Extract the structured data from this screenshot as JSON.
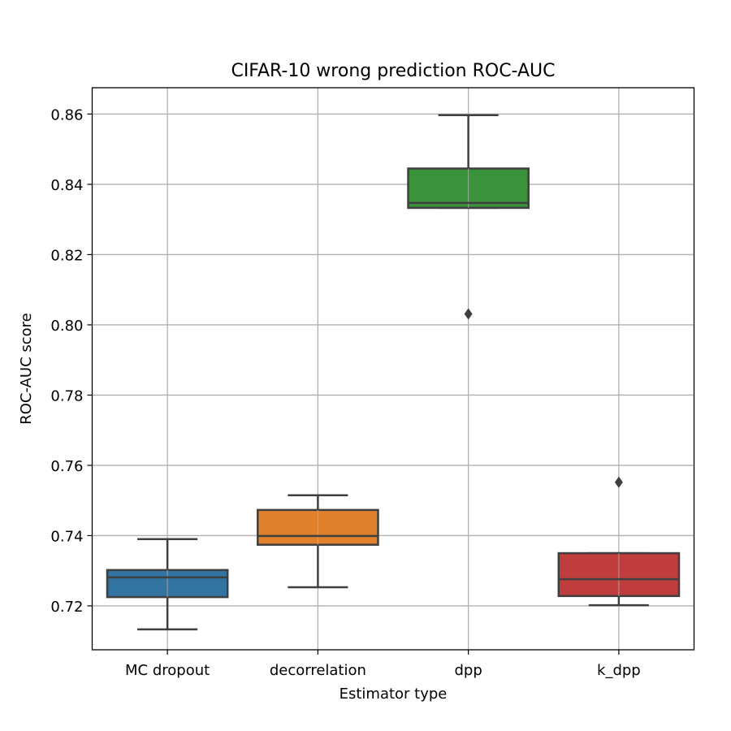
{
  "chart_data": {
    "type": "box",
    "title": "CIFAR-10 wrong prediction ROC-AUC",
    "xlabel": "Estimator type",
    "ylabel": "ROC-AUC score",
    "ylim": [
      0.7075,
      0.8675
    ],
    "yticks": [
      0.72,
      0.74,
      0.76,
      0.78,
      0.8,
      0.82,
      0.84,
      0.86
    ],
    "ytick_labels": [
      "0.72",
      "0.74",
      "0.76",
      "0.78",
      "0.80",
      "0.82",
      "0.84",
      "0.86"
    ],
    "grid": true,
    "categories": [
      "MC dropout",
      "decorrelation",
      "dpp",
      "k_dpp"
    ],
    "boxes": [
      {
        "category": "MC dropout",
        "whisker_low": 0.7133,
        "q1": 0.7225,
        "median": 0.7281,
        "q3": 0.7302,
        "whisker_high": 0.739,
        "outliers": [],
        "color": "#3274a1"
      },
      {
        "category": "decorrelation",
        "whisker_low": 0.7253,
        "q1": 0.7374,
        "median": 0.7399,
        "q3": 0.7473,
        "whisker_high": 0.7515,
        "outliers": [],
        "color": "#e1812c"
      },
      {
        "category": "dpp",
        "whisker_low": 0.8333,
        "q1": 0.8333,
        "median": 0.8347,
        "q3": 0.8445,
        "whisker_high": 0.8597,
        "outliers": [
          0.8031
        ],
        "color": "#3a923a"
      },
      {
        "category": "k_dpp",
        "whisker_low": 0.7202,
        "q1": 0.7228,
        "median": 0.7276,
        "q3": 0.735,
        "whisker_high": 0.735,
        "outliers": [
          0.7552
        ],
        "color": "#c03d3e"
      }
    ],
    "line_color": "#3f3f3f",
    "grid_color": "#b0b0b0"
  }
}
